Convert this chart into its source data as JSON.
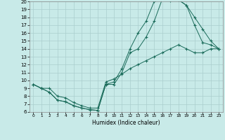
{
  "xlabel": "Humidex (Indice chaleur)",
  "bg_color": "#c8eae8",
  "grid_color": "#aacece",
  "line_color": "#1a6b5a",
  "xlim": [
    -0.5,
    23.5
  ],
  "ylim": [
    6,
    20
  ],
  "curve1_x": [
    0,
    1,
    2,
    3,
    4,
    5,
    6,
    7,
    8,
    9,
    10,
    11,
    12,
    13,
    14,
    15,
    16,
    17,
    18,
    19,
    20,
    21,
    22,
    23
  ],
  "curve1_y": [
    9.5,
    9.0,
    8.5,
    7.5,
    7.3,
    6.8,
    6.5,
    6.3,
    6.2,
    9.5,
    9.5,
    11.0,
    13.5,
    14.0,
    15.5,
    17.5,
    20.3,
    20.1,
    20.2,
    19.5,
    18.0,
    16.5,
    15.0,
    14.0
  ],
  "curve2_x": [
    0,
    1,
    2,
    3,
    4,
    5,
    6,
    7,
    8,
    9,
    10,
    11,
    12,
    13,
    14,
    15,
    16,
    17,
    18,
    19,
    20,
    21,
    22,
    23
  ],
  "curve2_y": [
    9.5,
    9.0,
    8.5,
    7.5,
    7.3,
    6.8,
    6.5,
    6.3,
    6.2,
    9.5,
    9.8,
    11.5,
    14.0,
    16.0,
    17.5,
    20.0,
    20.3,
    20.2,
    20.2,
    19.5,
    17.0,
    14.8,
    14.5,
    14.0
  ],
  "curve3_x": [
    0,
    1,
    2,
    3,
    4,
    5,
    6,
    7,
    8,
    9,
    10,
    11,
    12,
    13,
    14,
    15,
    16,
    17,
    18,
    19,
    20,
    21,
    22,
    23
  ],
  "curve3_y": [
    9.5,
    9.0,
    9.0,
    8.0,
    7.8,
    7.2,
    6.8,
    6.5,
    6.5,
    9.8,
    10.2,
    10.8,
    11.5,
    12.0,
    12.5,
    13.0,
    13.5,
    14.0,
    14.5,
    14.0,
    13.5,
    13.5,
    14.0,
    14.0
  ],
  "xtick_labels": [
    "0",
    "1",
    "2",
    "3",
    "4",
    "5",
    "6",
    "7",
    "8",
    "9",
    "10",
    "11",
    "12",
    "13",
    "14",
    "15",
    "16",
    "17",
    "18",
    "19",
    "20",
    "21",
    "22",
    "23"
  ],
  "ytick_labels": [
    "6",
    "7",
    "8",
    "9",
    "10",
    "11",
    "12",
    "13",
    "14",
    "15",
    "16",
    "17",
    "18",
    "19",
    "20"
  ]
}
